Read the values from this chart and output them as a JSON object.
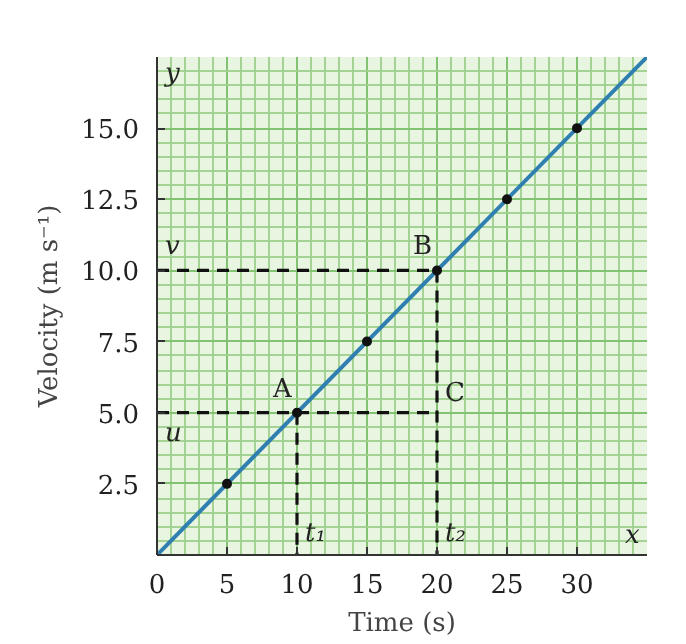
{
  "chart_data": {
    "type": "line",
    "xlabel": "Time (s)",
    "ylabel": "Velocity (m s⁻¹)",
    "xlim": [
      0,
      35
    ],
    "ylim": [
      0,
      17.5
    ],
    "xticks": [
      0,
      5,
      10,
      15,
      20,
      25,
      30
    ],
    "yticks": [
      {
        "value": 2.5,
        "label": "2.5"
      },
      {
        "value": 5,
        "label": "5.0"
      },
      {
        "value": 7.5,
        "label": "7.5"
      },
      {
        "value": 10,
        "label": "10.0"
      },
      {
        "value": 12.5,
        "label": "12.5"
      },
      {
        "value": 15,
        "label": "15.0"
      }
    ],
    "grid": true,
    "series": [
      {
        "color": "#2f7fb0",
        "x": [
          0,
          35
        ],
        "values": [
          0,
          17.5
        ],
        "line_style": "solid"
      },
      {
        "type": "scatter",
        "color": "#111111",
        "x": [
          5,
          10,
          15,
          20,
          25,
          30
        ],
        "values": [
          2.5,
          5,
          7.5,
          10,
          12.5,
          15
        ],
        "marker": "circle"
      },
      {
        "type": "line",
        "color": "#111111",
        "x": [
          0,
          20,
          20
        ],
        "values": [
          10,
          10,
          0
        ],
        "line_style": "dashed"
      },
      {
        "type": "line",
        "color": "#111111",
        "x": [
          0,
          20
        ],
        "values": [
          5,
          5
        ],
        "line_style": "dashed"
      },
      {
        "type": "line",
        "color": "#111111",
        "x": [
          10,
          10
        ],
        "values": [
          5,
          0
        ],
        "line_style": "dashed"
      }
    ],
    "annotations": [
      {
        "text": "A",
        "x": 10,
        "y": 5
      },
      {
        "text": "B",
        "x": 20,
        "y": 10
      },
      {
        "text": "C",
        "x": 20,
        "y": 5
      },
      {
        "text": "v",
        "x": 0,
        "y": 10
      },
      {
        "text": "u",
        "x": 0,
        "y": 5
      },
      {
        "text": "t₁",
        "x": 10,
        "y": 0
      },
      {
        "text": "t₂",
        "x": 20,
        "y": 0
      },
      "x",
      "y"
    ]
  }
}
